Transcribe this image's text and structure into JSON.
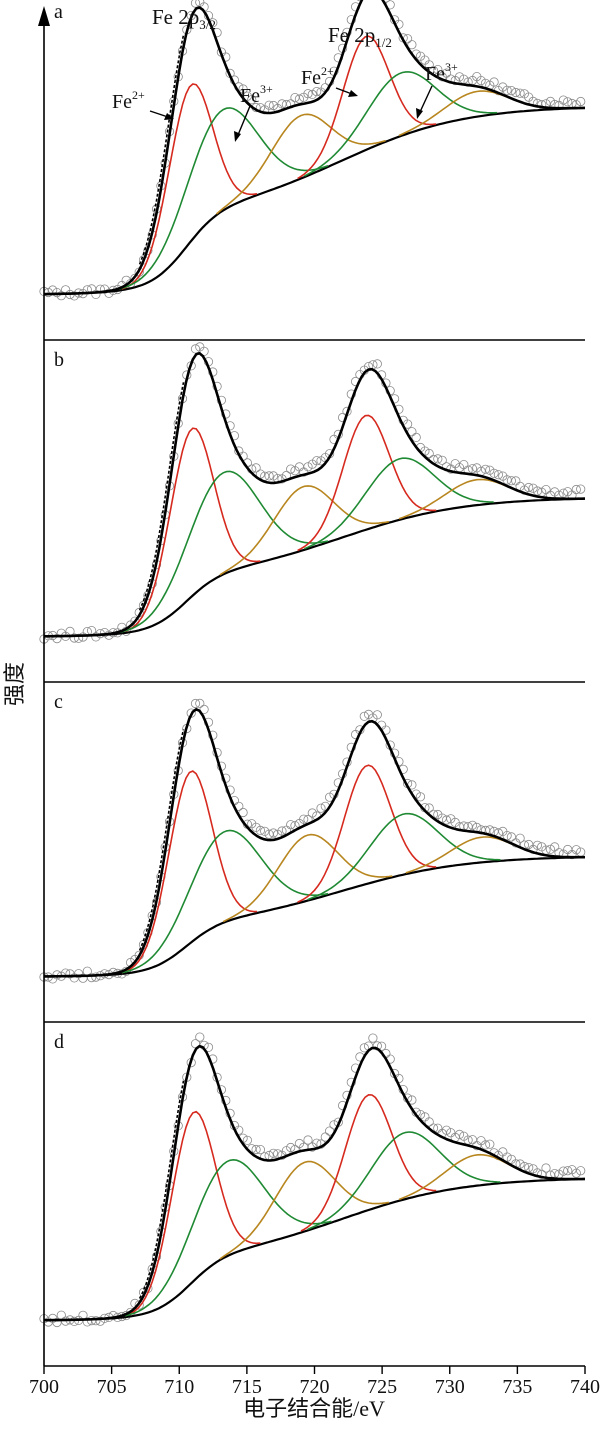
{
  "chart_data": {
    "type": "line",
    "xlabel": "电子结合能/eV",
    "ylabel": "强度",
    "xlim": [
      700,
      740
    ],
    "xticks": [
      "700",
      "705",
      "710",
      "715",
      "720",
      "725",
      "730",
      "735",
      "740"
    ],
    "grid": false,
    "colors": {
      "fit": "#000000",
      "background": "#000000",
      "fe2": "#d62a1f",
      "fe3": "#1f8a33",
      "satellite": "#b8861f",
      "data": "#8a8a8a"
    },
    "annotations": {
      "fe2p32": "Fe 2p",
      "fe2p32_sub": "3/2",
      "fe2p12": "Fe 2p",
      "fe2p12_sub": "1/2",
      "fe2": "Fe",
      "fe2_sup": "2+",
      "fe3": "Fe",
      "fe3_sup": "3+"
    },
    "panels": [
      {
        "label": "a",
        "background": {
          "low": 0.02,
          "high": 0.77,
          "step1_center": 710.5,
          "step1_width": 1.3,
          "step1_frac": 0.42,
          "step2_center": 722,
          "step2_width": 4.5
        },
        "components": [
          {
            "kind": "fe2",
            "center": 710.8,
            "height": 0.62,
            "width": 1.6
          },
          {
            "kind": "fe3",
            "center": 713.2,
            "height": 0.4,
            "width": 2.6
          },
          {
            "kind": "sat",
            "center": 719.0,
            "height": 0.25,
            "width": 2.2
          },
          {
            "kind": "fe2",
            "center": 723.8,
            "height": 0.45,
            "width": 1.7
          },
          {
            "kind": "fe3",
            "center": 726.4,
            "height": 0.25,
            "width": 2.5
          },
          {
            "kind": "sat",
            "center": 732.0,
            "height": 0.1,
            "width": 2.3
          }
        ]
      },
      {
        "label": "b",
        "background": {
          "low": 0.02,
          "high": 0.57,
          "step1_center": 710.5,
          "step1_width": 1.3,
          "step1_frac": 0.42,
          "step2_center": 722,
          "step2_width": 4.5
        },
        "components": [
          {
            "kind": "fe2",
            "center": 710.9,
            "height": 0.66,
            "width": 1.6
          },
          {
            "kind": "fe3",
            "center": 713.3,
            "height": 0.4,
            "width": 2.6
          },
          {
            "kind": "sat",
            "center": 719.2,
            "height": 0.25,
            "width": 2.2
          },
          {
            "kind": "fe2",
            "center": 723.8,
            "height": 0.45,
            "width": 1.7
          },
          {
            "kind": "fe3",
            "center": 726.3,
            "height": 0.24,
            "width": 2.5
          },
          {
            "kind": "sat",
            "center": 732.0,
            "height": 0.1,
            "width": 2.3
          }
        ]
      },
      {
        "label": "c",
        "background": {
          "low": 0.02,
          "high": 0.5,
          "step1_center": 710.5,
          "step1_width": 1.3,
          "step1_frac": 0.42,
          "step2_center": 722,
          "step2_width": 4.5
        },
        "components": [
          {
            "kind": "fe2",
            "center": 710.8,
            "height": 0.68,
            "width": 1.6
          },
          {
            "kind": "fe3",
            "center": 713.4,
            "height": 0.36,
            "width": 2.6
          },
          {
            "kind": "sat",
            "center": 719.5,
            "height": 0.26,
            "width": 2.2
          },
          {
            "kind": "fe2",
            "center": 723.9,
            "height": 0.47,
            "width": 1.7
          },
          {
            "kind": "fe3",
            "center": 726.6,
            "height": 0.24,
            "width": 2.5
          },
          {
            "kind": "sat",
            "center": 732.4,
            "height": 0.1,
            "width": 2.3
          }
        ]
      },
      {
        "label": "d",
        "background": {
          "low": 0.02,
          "high": 0.58,
          "step1_center": 710.8,
          "step1_width": 1.3,
          "step1_frac": 0.42,
          "step2_center": 722,
          "step2_width": 4.5
        },
        "components": [
          {
            "kind": "fe2",
            "center": 711.0,
            "height": 0.66,
            "width": 1.6
          },
          {
            "kind": "fe3",
            "center": 713.6,
            "height": 0.37,
            "width": 2.6
          },
          {
            "kind": "sat",
            "center": 719.3,
            "height": 0.27,
            "width": 2.2
          },
          {
            "kind": "fe2",
            "center": 724.0,
            "height": 0.45,
            "width": 1.7
          },
          {
            "kind": "fe3",
            "center": 726.7,
            "height": 0.26,
            "width": 2.5
          },
          {
            "kind": "sat",
            "center": 732.0,
            "height": 0.12,
            "width": 2.3
          }
        ]
      }
    ]
  }
}
